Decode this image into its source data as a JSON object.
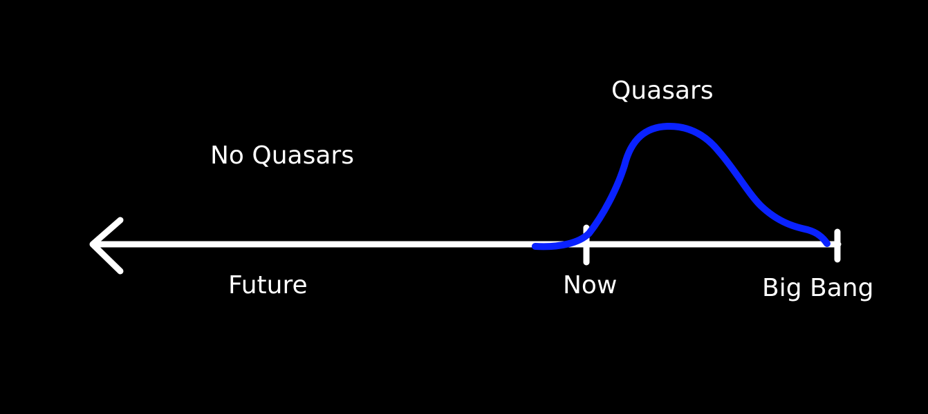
{
  "labels": {
    "no_quasars": "No Quasars",
    "quasars": "Quasars",
    "future": "Future",
    "now": "Now",
    "big_bang": "Big Bang"
  },
  "colors": {
    "background": "#000000",
    "timeline": "#ffffff",
    "curve": "#0a22ff",
    "text": "#ffffff"
  }
}
